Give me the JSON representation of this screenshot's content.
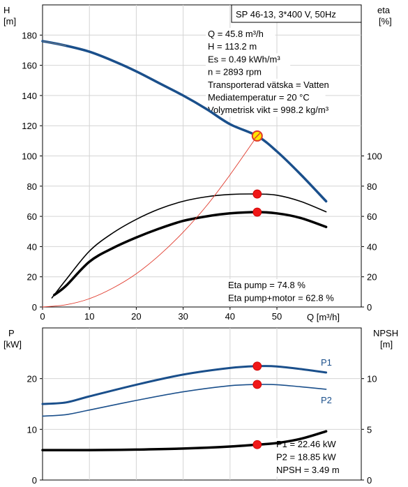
{
  "chart_data": [
    {
      "type": "line",
      "title": "SP 46-13, 3*400 V, 50Hz",
      "ylabel_left": "H\n[m]",
      "ylabel_right": "eta\n[%]",
      "xlabel": "Q [m³/h]",
      "xlim": [
        0,
        68
      ],
      "ylim_left": [
        0,
        200
      ],
      "ylim_right": [
        0,
        200
      ],
      "xticks": [
        0,
        10,
        20,
        30,
        40,
        50
      ],
      "yticks_left": [
        0,
        20,
        40,
        60,
        80,
        100,
        120,
        140,
        160,
        180
      ],
      "yticks_right": [
        0,
        20,
        40,
        60,
        80,
        100
      ],
      "grid": true,
      "info_lines": [
        "Q = 45.8 m³/h",
        "H = 113.2 m",
        "Es = 0.49 kWh/m³",
        "n = 2893 rpm",
        "Transporterad vätska = Vatten",
        "Mediatemperatur = 20 °C",
        "Volymetrisk vikt = 998.2 kg/m³"
      ],
      "eta_lines": [
        "Eta pump = 74.8 %",
        "Eta pump+motor = 62.8 %"
      ],
      "series": [
        {
          "key": "H",
          "color": "#1a4f8b",
          "axis": "left",
          "x": [
            0,
            5,
            10,
            15,
            20,
            25,
            30,
            35,
            40,
            45.8,
            50,
            55,
            60.5
          ],
          "y": [
            176,
            173,
            169,
            163,
            156,
            148,
            140,
            131,
            121,
            113.2,
            103,
            88,
            70
          ]
        },
        {
          "key": "eta_pump",
          "color": "#000000",
          "axis": "right",
          "x": [
            2,
            5,
            10,
            15,
            20,
            25,
            30,
            35,
            40,
            45.8,
            50,
            55,
            60.5
          ],
          "y": [
            6,
            18,
            37,
            49,
            58,
            65,
            70,
            73,
            74.5,
            74.8,
            74,
            70,
            63
          ]
        },
        {
          "key": "eta_total",
          "color": "#000000",
          "axis": "right",
          "x": [
            2.5,
            5,
            10,
            15,
            20,
            25,
            30,
            35,
            40,
            45.8,
            50,
            55,
            60.5
          ],
          "y": [
            8,
            14,
            30,
            39,
            46,
            52,
            57,
            60,
            62,
            62.8,
            62,
            59,
            53
          ]
        },
        {
          "key": "system",
          "color": "#e0392b",
          "axis": "left",
          "x": [
            0,
            5,
            10,
            15,
            20,
            25,
            30,
            35,
            40,
            45.8
          ],
          "y": [
            0,
            1.5,
            5.5,
            12.5,
            22,
            34.5,
            49.5,
            67,
            87.5,
            113.2
          ]
        }
      ],
      "markers": [
        {
          "x": 45.8,
          "y": 113.2,
          "axis": "left",
          "style": "duty"
        },
        {
          "x": 45.8,
          "y": 74.8,
          "axis": "right",
          "style": "dot"
        },
        {
          "x": 45.8,
          "y": 62.8,
          "axis": "right",
          "style": "dot"
        }
      ]
    },
    {
      "type": "line",
      "ylabel_left": "P\n[kW]",
      "ylabel_right": "NPSH\n[m]",
      "xlim": [
        0,
        68
      ],
      "ylim_left": [
        0,
        30
      ],
      "ylim_right": [
        0,
        15
      ],
      "yticks_left": [
        0,
        10,
        20
      ],
      "yticks_right": [
        0,
        5,
        10
      ],
      "grid": true,
      "info_lines": [
        "P1 = 22.46 kW",
        "P2 = 18.85 kW",
        "NPSH = 3.49 m"
      ],
      "series": [
        {
          "name": "P1",
          "color": "#1a4f8b",
          "axis": "left",
          "x": [
            0,
            5,
            10,
            20,
            30,
            40,
            45.8,
            50,
            55,
            60.5
          ],
          "y": [
            15,
            15.3,
            16.5,
            18.8,
            20.8,
            22.1,
            22.46,
            22.4,
            21.9,
            21.2
          ]
        },
        {
          "name": "P2",
          "color": "#1a4f8b",
          "axis": "left",
          "x": [
            0,
            5,
            10,
            20,
            30,
            40,
            45.8,
            50,
            55,
            60.5
          ],
          "y": [
            12.6,
            12.9,
            13.8,
            15.7,
            17.4,
            18.6,
            18.85,
            18.8,
            18.4,
            17.9
          ]
        },
        {
          "key": "NPSH",
          "color": "#000000",
          "axis": "right",
          "x": [
            0,
            5,
            10,
            20,
            30,
            40,
            45.8,
            50,
            55,
            60.5
          ],
          "y": [
            2.95,
            2.95,
            2.95,
            3.0,
            3.1,
            3.3,
            3.49,
            3.65,
            4.05,
            4.8
          ]
        }
      ],
      "markers": [
        {
          "x": 45.8,
          "y": 22.46,
          "axis": "left",
          "style": "dot"
        },
        {
          "x": 45.8,
          "y": 18.85,
          "axis": "left",
          "style": "dot"
        },
        {
          "x": 45.8,
          "y": 3.49,
          "axis": "right",
          "style": "dot"
        }
      ]
    }
  ]
}
